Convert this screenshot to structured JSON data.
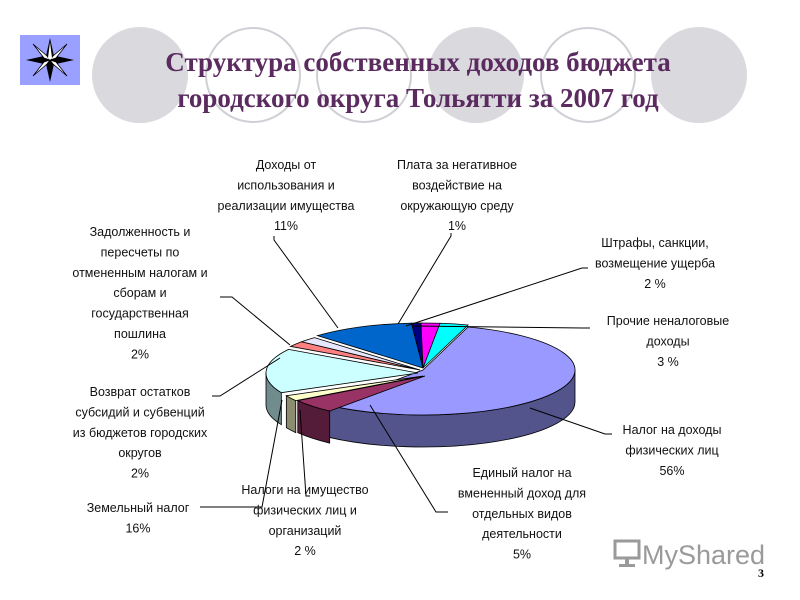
{
  "title": {
    "line1": "Структура собственных доходов бюджета",
    "line2": "городского округа Тольятти за  2007 год"
  },
  "slide_number": "3",
  "watermark": "MyShared",
  "colors": {
    "title": "#5b2a5f",
    "logo": "#9aa0ff"
  },
  "chart_data": {
    "type": "pie",
    "title": "",
    "slices": [
      {
        "value": 56,
        "color": "#9999ff",
        "label": [
          "Налог на доходы",
          "физических лиц",
          "56%"
        ]
      },
      {
        "value": 5,
        "color": "#993366",
        "label": [
          "Единый налог на",
          "вмененный доход для",
          "отдельных видов",
          "деятельности",
          "5%"
        ]
      },
      {
        "value": 2,
        "color": "#ffffcc",
        "label": [
          "Налоги на имущество",
          "физических лиц и",
          "организаций",
          "2 %"
        ]
      },
      {
        "value": 16,
        "color": "#ccffff",
        "label": [
          "Земельный налог",
          "16%"
        ]
      },
      {
        "value": 2,
        "color": "#ff8080",
        "label": [
          "Возврат остатков",
          "субсидий и субвенций",
          "из бюджетов городских",
          "округов",
          "2%"
        ]
      },
      {
        "value": 2,
        "color": "#e6e6ff",
        "label": [
          "Задолженность и",
          "пересчеты по",
          "отмененным налогам и",
          "сборам и",
          "государственная",
          "пошлина",
          "2%"
        ]
      },
      {
        "value": 11,
        "color": "#0066cc",
        "label": [
          "Доходы от",
          "использования и",
          "реализации имущества",
          "11%"
        ]
      },
      {
        "value": 1,
        "color": "#000080",
        "label": [
          "Плата за негативное",
          "воздействие на",
          "окружающую среду",
          "1%"
        ]
      },
      {
        "value": 2,
        "color": "#ff00ff",
        "label": [
          "Штрафы, санкции,",
          "возмещение ущерба",
          "2 %"
        ]
      },
      {
        "value": 3,
        "color": "#00ffff",
        "label": [
          "Прочие неналоговые",
          "доходы",
          "3 %"
        ]
      }
    ]
  }
}
